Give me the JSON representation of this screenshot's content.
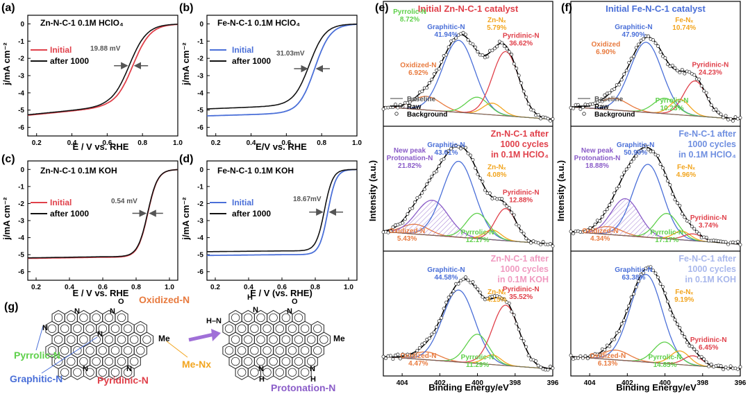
{
  "chart_data": [
    {
      "id": "a",
      "type": "line",
      "panel_label": "(a)",
      "annotation": "Zn-N-C-1   0.1M HClO₄",
      "xlabel": "E / V vs. RHE",
      "ylabel": "j/mA cm⁻²",
      "xlim": [
        0.15,
        1.0
      ],
      "ylim": [
        -6.5,
        0.5
      ],
      "xticks": [
        "0.2",
        "0.4",
        "0.6",
        "0.8",
        "1.0"
      ],
      "yticks": [
        "0",
        "-1",
        "-2",
        "-3",
        "-4",
        "-5",
        "-6"
      ],
      "legend": [
        "Initial",
        "after 1000"
      ],
      "shift_label": "19.88 mV",
      "colors": {
        "initial": "#e0404a",
        "after": "#111111"
      },
      "curve": {
        "jlim": -4.85,
        "slope": 1.0,
        "e_half": 0.745,
        "width": 0.05,
        "shift_v": 0.02
      }
    },
    {
      "id": "b",
      "type": "line",
      "panel_label": "(b)",
      "annotation": "Fe-N-C-1   0.1M HClO₄",
      "xlabel": "E/V vs. RHE",
      "ylabel": "j/mA cm⁻²",
      "xlim": [
        0.15,
        1.0
      ],
      "ylim": [
        -6.5,
        0.5
      ],
      "xticks": [
        "0.2",
        "0.4",
        "0.6",
        "0.8",
        "1.0"
      ],
      "yticks": [
        "0",
        "-1",
        "-2",
        "-3",
        "-4",
        "-5",
        "-6"
      ],
      "legend": [
        "Initial",
        "after 1000"
      ],
      "shift_label": "31.03mV",
      "colors": {
        "initial": "#4a6fd8",
        "after": "#111111"
      },
      "curve_initial": {
        "jlim": -5.2,
        "slope": 0.3,
        "e_half": 0.76,
        "width": 0.045
      },
      "curve_after": {
        "jlim": -4.75,
        "slope": 0.4,
        "e_half": 0.73,
        "width": 0.045
      }
    },
    {
      "id": "c",
      "type": "line",
      "panel_label": "(c)",
      "annotation": "Zn-N-C-1   0.1M KOH",
      "xlabel": "E / V vs. RHE",
      "ylabel": "j/mA cm⁻²",
      "xlim": [
        0.15,
        1.05
      ],
      "ylim": [
        -6.5,
        0.5
      ],
      "xticks": [
        "0.2",
        "0.4",
        "0.6",
        "0.8",
        "1.0"
      ],
      "yticks": [
        "0",
        "-1",
        "-2",
        "-3",
        "-4",
        "-5",
        "-6"
      ],
      "legend": [
        "Initial",
        "after 1000"
      ],
      "shift_label": "0.54 mV",
      "colors": {
        "initial": "#e0404a",
        "after": "#111111"
      },
      "curve": {
        "jlim": -5.15,
        "slope": 0.15,
        "e_half": 0.87,
        "width": 0.03,
        "shift_v": 0.001
      }
    },
    {
      "id": "d",
      "type": "line",
      "panel_label": "(d)",
      "annotation": "Fe-N-C-1   0.1M KOH",
      "xlabel": "E / V (vs. RHE)",
      "ylabel": "j/mA cm⁻²",
      "xlim": [
        0.15,
        1.05
      ],
      "ylim": [
        -6.5,
        0.5
      ],
      "xticks": [
        "0.2",
        "0.4",
        "0.6",
        "0.8",
        "1.0"
      ],
      "yticks": [
        "0",
        "-1",
        "-2",
        "-3",
        "-4",
        "-5",
        "-6"
      ],
      "legend": [
        "Initial",
        "after 1000"
      ],
      "shift_label": "18.67mV",
      "colors": {
        "initial": "#4a6fd8",
        "after": "#111111"
      },
      "curve_initial": {
        "jlim": -5.0,
        "slope": 0.1,
        "e_half": 0.875,
        "width": 0.025
      },
      "curve_after": {
        "jlim": -4.78,
        "slope": 0.1,
        "e_half": 0.855,
        "width": 0.025
      }
    },
    {
      "id": "e",
      "type": "line",
      "panel_label": "(e)",
      "xlabel": "Binding Energy/eV",
      "ylabel": "Intensity (a.u.)",
      "xlim": [
        405,
        396
      ],
      "xticks": [
        "404",
        "402",
        "400",
        "398",
        "396"
      ],
      "legend": [
        "Baseline",
        "Raw",
        "Background"
      ],
      "subpanels": [
        {
          "title": "Initial Zn-N-C-1 catalyst",
          "title_color": "#e0404a",
          "peaks": [
            {
              "name": "Oxidized-N",
              "percent": "6.92%",
              "center": 402.7,
              "height": 0.14,
              "sigma": 0.75,
              "color": "#e87a3e"
            },
            {
              "name": "Graphitic-N",
              "percent": "41.94%",
              "center": 401.0,
              "height": 0.74,
              "sigma": 0.85,
              "color": "#4a6fd8"
            },
            {
              "name": "Pyrrolic-N",
              "percent": "8.72%",
              "center": 400.0,
              "height": 0.17,
              "sigma": 0.6,
              "color": "#5ed04a"
            },
            {
              "name": "Zn-Nₓ",
              "percent": "5.79%",
              "center": 399.2,
              "height": 0.12,
              "sigma": 0.5,
              "color": "#f2a51f"
            },
            {
              "name": "Pyridinic-N",
              "percent": "36.62%",
              "center": 398.5,
              "height": 0.66,
              "sigma": 0.7,
              "color": "#e0404a"
            }
          ]
        },
        {
          "title": "Zn-N-C-1 after 1000 cycles in 0.1M HClO₄",
          "title_color": "#e0404a",
          "peaks": [
            {
              "name": "Oxidized-N",
              "percent": "5.43%",
              "center": 403.3,
              "height": 0.1,
              "sigma": 0.7,
              "color": "#e87a3e"
            },
            {
              "name": "New peak Protonation-N",
              "percent": "21.82%",
              "center": 402.4,
              "height": 0.36,
              "sigma": 0.85,
              "color": "#8a5cc8"
            },
            {
              "name": "Graphitic-N",
              "percent": "43.61%",
              "center": 401.0,
              "height": 0.78,
              "sigma": 0.85,
              "color": "#4a6fd8"
            },
            {
              "name": "Pyrrolic-N",
              "percent": "12.17%",
              "center": 400.0,
              "height": 0.26,
              "sigma": 0.6,
              "color": "#5ed04a"
            },
            {
              "name": "Zn-Nₓ",
              "percent": "4.08%",
              "center": 399.2,
              "height": 0.1,
              "sigma": 0.45,
              "color": "#f2a51f"
            },
            {
              "name": "Pyridinic-N",
              "percent": "12.88%",
              "center": 398.5,
              "height": 0.33,
              "sigma": 0.55,
              "color": "#e0404a"
            }
          ]
        },
        {
          "title": "Zn-N-C-1 after 1000 cycles in 0.1M KOH",
          "title_color": "#f09ac0",
          "peaks": [
            {
              "name": "Oxidized-N",
              "percent": "4.47%",
              "center": 402.7,
              "height": 0.08,
              "sigma": 0.7,
              "color": "#e87a3e"
            },
            {
              "name": "Graphitic-N",
              "percent": "44.58%",
              "center": 401.0,
              "height": 0.74,
              "sigma": 0.85,
              "color": "#4a6fd8"
            },
            {
              "name": "Pyrrolic-N",
              "percent": "11.29%",
              "center": 400.0,
              "height": 0.3,
              "sigma": 0.6,
              "color": "#5ed04a"
            },
            {
              "name": "Zn-Nₓ",
              "percent": "4.15%",
              "center": 399.2,
              "height": 0.1,
              "sigma": 0.45,
              "color": "#f2a51f"
            },
            {
              "name": "Pyridinic-N",
              "percent": "35.52%",
              "center": 398.5,
              "height": 0.62,
              "sigma": 0.7,
              "color": "#e0404a"
            }
          ]
        }
      ]
    },
    {
      "id": "f",
      "type": "line",
      "panel_label": "(f)",
      "xlabel": "Binding Energy/eV",
      "ylabel": "Intensity (a.u.)",
      "xlim": [
        405,
        396
      ],
      "xticks": [
        "404",
        "402",
        "400",
        "398",
        "396"
      ],
      "legend": [
        "Baseline",
        "Raw",
        "Background"
      ],
      "subpanels": [
        {
          "title": "Initial Fe-N-C-1 catalyst",
          "title_color": "#4a6fd8",
          "peaks": [
            {
              "name": "Oxidized",
              "percent": "6.90%",
              "center": 402.7,
              "height": 0.12,
              "sigma": 0.75,
              "color": "#e87a3e"
            },
            {
              "name": "Graphitic-N",
              "percent": "47.90%",
              "center": 401.0,
              "height": 0.72,
              "sigma": 0.85,
              "color": "#4a6fd8"
            },
            {
              "name": "Pyrrolic-N",
              "percent": "10.23%",
              "center": 400.0,
              "height": 0.16,
              "sigma": 0.6,
              "color": "#5ed04a"
            },
            {
              "name": "Fe-Nₓ",
              "percent": "10.74%",
              "center": 399.2,
              "height": 0.16,
              "sigma": 0.5,
              "color": "#f2a51f"
            },
            {
              "name": "Pyridinic-N",
              "percent": "24.23%",
              "center": 398.4,
              "height": 0.36,
              "sigma": 0.6,
              "color": "#e0404a"
            }
          ]
        },
        {
          "title": "Fe-N-C-1 after 1000 cycles in 0.1M HClO₄",
          "title_color": "#6f8fe0",
          "peaks": [
            {
              "name": "Oxidized-N",
              "percent": "4.34%",
              "center": 403.0,
              "height": 0.08,
              "sigma": 0.7,
              "color": "#e87a3e"
            },
            {
              "name": "New peak Protonation-N",
              "percent": "18.88%",
              "center": 402.1,
              "height": 0.38,
              "sigma": 0.75,
              "color": "#8a5cc8"
            },
            {
              "name": "Graphitic-N",
              "percent": "50.90%",
              "center": 400.9,
              "height": 0.75,
              "sigma": 0.8,
              "color": "#4a6fd8"
            },
            {
              "name": "Pyrrolic-N",
              "percent": "17.17%",
              "center": 399.9,
              "height": 0.26,
              "sigma": 0.6,
              "color": "#5ed04a"
            },
            {
              "name": "Fe-Nₓ",
              "percent": "4.96%",
              "center": 399.1,
              "height": 0.09,
              "sigma": 0.45,
              "color": "#f2a51f"
            },
            {
              "name": "Pyridinic-N",
              "percent": "3.74%",
              "center": 398.5,
              "height": 0.07,
              "sigma": 0.5,
              "color": "#e0404a"
            }
          ]
        },
        {
          "title": "Fe-N-C-1 after 1000 cycles in 0.1M KOH",
          "title_color": "#a9b8ec",
          "peaks": [
            {
              "name": "Oxidized-N",
              "percent": "6.13%",
              "center": 402.6,
              "height": 0.1,
              "sigma": 0.7,
              "color": "#e87a3e"
            },
            {
              "name": "Graphitic-N",
              "percent": "63.38%",
              "center": 401.0,
              "height": 0.9,
              "sigma": 0.85,
              "color": "#4a6fd8"
            },
            {
              "name": "Pyrrolic-N",
              "percent": "14.85%",
              "center": 400.0,
              "height": 0.22,
              "sigma": 0.6,
              "color": "#5ed04a"
            },
            {
              "name": "Fe-Nₓ",
              "percent": "9.19%",
              "center": 399.2,
              "height": 0.14,
              "sigma": 0.5,
              "color": "#f2a51f"
            },
            {
              "name": "Pyridinic-N",
              "percent": "6.45%",
              "center": 398.5,
              "height": 0.1,
              "sigma": 0.5,
              "color": "#e0404a"
            }
          ]
        }
      ]
    }
  ],
  "schematic": {
    "panel_label": "(g)",
    "labels": {
      "oxidized": "Oxidized-N",
      "pyrrolic": "Pyrrolic-N",
      "graphitic": "Graphitic-N",
      "pyridinic": "Pyridinic-N",
      "me_nx": "Me-Nx",
      "protonation": "Protonation-N",
      "me": "Me",
      "n": "N",
      "o": "O",
      "h": "H",
      "hn": "H–N"
    },
    "colors": {
      "oxidized": "#e87a3e",
      "pyrrolic": "#5ed04a",
      "graphitic": "#4a6fd8",
      "pyridinic": "#e0404a",
      "me_nx": "#f2a51f",
      "protonation": "#8a5cc8"
    }
  }
}
